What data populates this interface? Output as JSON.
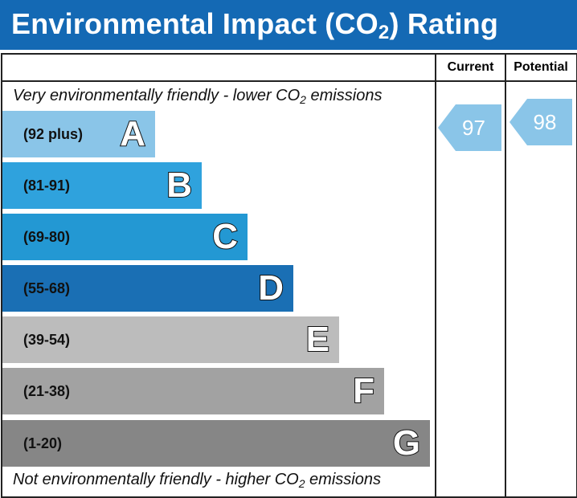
{
  "header": {
    "title_pre": "Environmental Impact (CO",
    "title_sub": "2",
    "title_post": ") Rating",
    "background": "#1469b4"
  },
  "columns": {
    "current": "Current",
    "potential": "Potential"
  },
  "top_note": {
    "pre": "Very environmentally friendly - lower CO",
    "sub": "2",
    "post": " emissions"
  },
  "bottom_note": {
    "pre": "Not environmentally friendly - higher CO",
    "sub": "2",
    "post": " emissions"
  },
  "chart_data": {
    "type": "bar",
    "title": "Environmental Impact (CO2) Rating",
    "categories": [
      "A",
      "B",
      "C",
      "D",
      "E",
      "F",
      "G"
    ],
    "bands": [
      {
        "letter": "A",
        "range": "(92 plus)",
        "color": "#8ac5e8"
      },
      {
        "letter": "B",
        "range": "(81-91)",
        "color": "#2fa2dd"
      },
      {
        "letter": "C",
        "range": "(69-80)",
        "color": "#2398d3"
      },
      {
        "letter": "D",
        "range": "(55-68)",
        "color": "#1a6fb4"
      },
      {
        "letter": "E",
        "range": "(39-54)",
        "color": "#bcbcbc"
      },
      {
        "letter": "F",
        "range": "(21-38)",
        "color": "#a2a2a2"
      },
      {
        "letter": "G",
        "range": "(1-20)",
        "color": "#868686"
      }
    ],
    "current": {
      "value": 97,
      "band": "A",
      "color": "#8ac5e8"
    },
    "potential": {
      "value": 98,
      "band": "A",
      "color": "#8ac5e8"
    }
  }
}
